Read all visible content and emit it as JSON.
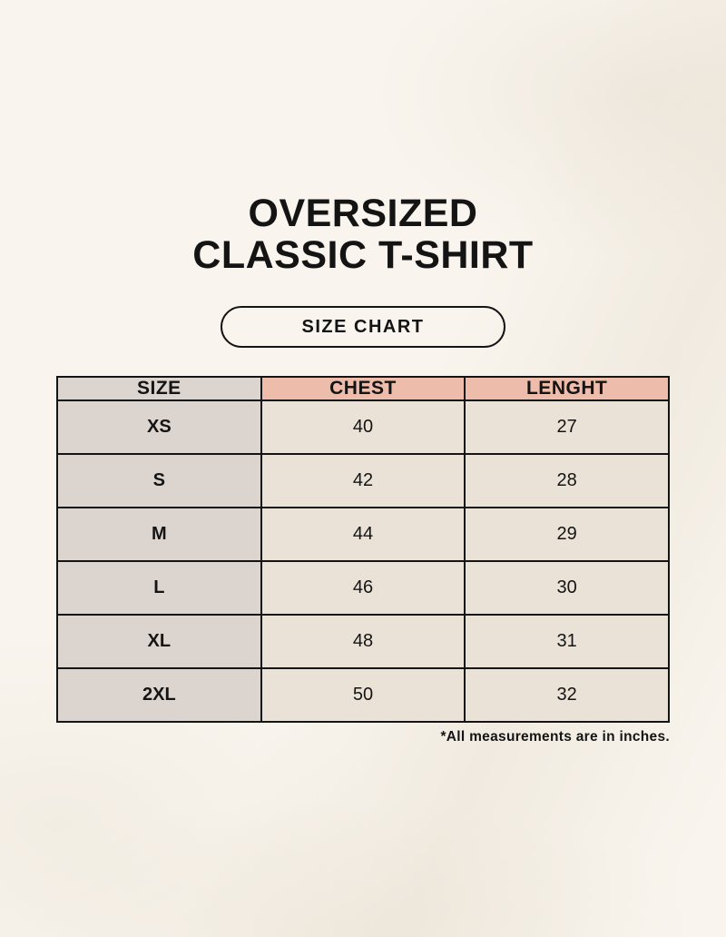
{
  "page": {
    "title_line1": "OVERSIZED",
    "title_line2": "CLASSIC T-SHIRT",
    "badge_label": "SIZE CHART",
    "footnote": "*All measurements are in inches."
  },
  "colors": {
    "page-background": "#f9f5ee",
    "accent-pink": "#eebcab",
    "taupe": "#dcd4ce",
    "cell-cream": "#eae2d7",
    "ink": "#141414"
  },
  "chart_data": {
    "type": "table",
    "title": "SIZE CHART",
    "columns": [
      "SIZE",
      "CHEST",
      "LENGHT"
    ],
    "rows": [
      {
        "size": "XS",
        "chest": 40,
        "lenght": 27
      },
      {
        "size": "S",
        "chest": 42,
        "lenght": 28
      },
      {
        "size": "M",
        "chest": 44,
        "lenght": 29
      },
      {
        "size": "L",
        "chest": 46,
        "lenght": 30
      },
      {
        "size": "XL",
        "chest": 48,
        "lenght": 31
      },
      {
        "size": "2XL",
        "chest": 50,
        "lenght": 32
      }
    ],
    "units": "inches",
    "note": "*All measurements are in inches."
  }
}
